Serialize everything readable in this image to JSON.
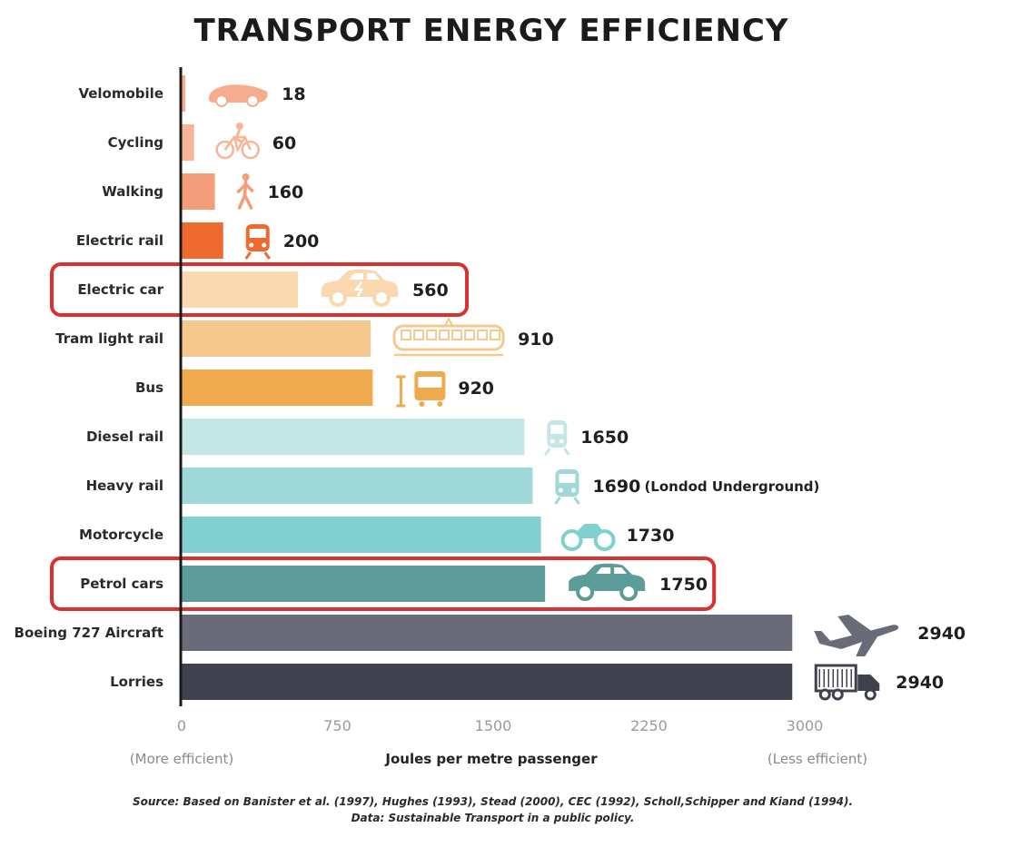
{
  "chart_data": {
    "type": "bar",
    "orientation": "horizontal",
    "title": "TRANSPORT ENERGY EFFICIENCY",
    "xlabel": "Joules per metre passenger",
    "xlabel_left": "(More efficient)",
    "xlabel_right": "(Less efficient)",
    "xlim": [
      0,
      3000
    ],
    "xticks": [
      "0",
      "750",
      "1500",
      "2250",
      "3000"
    ],
    "categories": [
      "Velomobile",
      "Cycling",
      "Walking",
      "Electric rail",
      "Electric car",
      "Tram light rail",
      "Bus",
      "Diesel rail",
      "Heavy rail",
      "Motorcycle",
      "Petrol cars",
      "Boeing 727 Aircraft",
      "Lorries"
    ],
    "values": [
      18,
      60,
      160,
      200,
      560,
      910,
      920,
      1650,
      1690,
      1730,
      1750,
      2940,
      2940
    ],
    "value_labels": [
      "18",
      "60",
      "160",
      "200",
      "560",
      "910",
      "920",
      "1650",
      "1690",
      "1730",
      "1750",
      "2940",
      "2940"
    ],
    "notes": [
      "",
      "",
      "",
      "",
      "",
      "",
      "",
      "",
      "(Londod Underground)",
      "",
      "",
      "",
      ""
    ],
    "icons": [
      "velomobile-icon",
      "bicycle-icon",
      "pedestrian-icon",
      "train-icon",
      "electric-car-icon",
      "tram-icon",
      "bus-icon",
      "diesel-train-icon",
      "metro-train-icon",
      "motorcycle-icon",
      "car-icon",
      "airplane-icon",
      "lorry-icon"
    ],
    "colors": [
      "#f6ad8f",
      "#f7b597",
      "#f49d7a",
      "#ef6a2e",
      "#fad9b1",
      "#f5c98e",
      "#f0aa4e",
      "#c3e7e5",
      "#9fd8d9",
      "#80cfd1",
      "#5c9c9a",
      "#6a6b78",
      "#40414f"
    ],
    "highlighted": [
      "Electric car",
      "Petrol cars"
    ],
    "highlight_color": "#d8312f",
    "grid": false
  },
  "source": {
    "line1": "Source: Based on Banister et al. (1997), Hughes (1993), Stead (2000), CEC (1992), Scholl,Schipper and Kiand (1994).",
    "line2": "Data: Sustainable Transport in a public policy."
  }
}
